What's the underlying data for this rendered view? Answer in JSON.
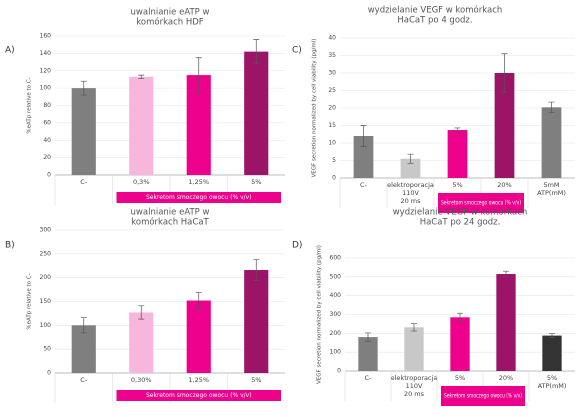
{
  "chart_data": [
    {
      "type": "bar",
      "panel": "A)",
      "title": [
        "uwalnianie eATP w",
        "komórkach HDF"
      ],
      "y_label": "%eATp relative to C-",
      "categories": [
        [
          "C-"
        ],
        [
          "0,3%"
        ],
        [
          "1,25%"
        ],
        [
          "5%"
        ]
      ],
      "values": [
        100,
        113,
        115,
        142
      ],
      "errors": [
        8,
        2,
        20,
        14
      ],
      "colors": [
        "#7f7f7f",
        "#f7b6dc",
        "#ec008c",
        "#9b1468"
      ],
      "group_label": "Sekretom smoczego owocu (% v/v)",
      "ylim": [
        0,
        160
      ],
      "yticks": [
        0,
        20,
        40,
        60,
        80,
        100,
        120,
        140,
        160
      ]
    },
    {
      "type": "bar",
      "panel": "C)",
      "title": [
        "wydzielanie VEGF w komórkach",
        "HaCaT po 4 godz."
      ],
      "y_label": "VEGF secretion normalized by cell viability (pg/ml)",
      "categories": [
        [
          "C-"
        ],
        [
          "elektroporacja",
          "110V",
          "20 ms"
        ],
        [
          "5%"
        ],
        [
          "20%"
        ],
        [
          "5mM",
          "ATP(mM)"
        ]
      ],
      "values": [
        12,
        5.5,
        13.7,
        30,
        20.2
      ],
      "errors": [
        3,
        1.3,
        0.6,
        5.5,
        1.5
      ],
      "colors": [
        "#7f7f7f",
        "#c8c8c8",
        "#ec008c",
        "#9b1468",
        "#7f7f7f"
      ],
      "group_label": "Sekretom smoczego owocu (% v/v)",
      "ylim": [
        0,
        40
      ],
      "yticks": [
        0,
        5,
        10,
        15,
        20,
        25,
        30,
        35,
        40
      ]
    },
    {
      "type": "bar",
      "panel": "B)",
      "title": [
        "uwalnianie eATP w",
        "komórkach HaCaT"
      ],
      "y_label": "%eATp relative to C-",
      "categories": [
        [
          "C-"
        ],
        [
          "0,30%"
        ],
        [
          "1,25%"
        ],
        [
          "5%"
        ]
      ],
      "values": [
        100,
        127,
        152,
        216
      ],
      "errors": [
        16,
        14,
        17,
        22
      ],
      "colors": [
        "#7f7f7f",
        "#f7b6dc",
        "#ec008c",
        "#9b1468"
      ],
      "group_label": "Sekretom smoczego owocu (% v/v)",
      "ylim": [
        0,
        300
      ],
      "yticks": [
        0,
        50,
        100,
        150,
        200,
        250,
        300
      ]
    },
    {
      "type": "bar",
      "panel": "D)",
      "title": [
        "wydzielanie VEGF w komórkach",
        "HaCaT po 24 godz."
      ],
      "y_label": "VEGF secretion normalized by cell viability (pg/ml)",
      "categories": [
        [
          "C-"
        ],
        [
          "elektroporacja",
          "110V",
          "20 ms"
        ],
        [
          "5%"
        ],
        [
          "20%"
        ],
        [
          "5%",
          "ATP(mM)"
        ]
      ],
      "values": [
        180,
        232,
        285,
        515,
        188
      ],
      "errors": [
        22,
        20,
        22,
        15,
        10
      ],
      "colors": [
        "#7f7f7f",
        "#c8c8c8",
        "#ec008c",
        "#9b1468",
        "#333333"
      ],
      "group_label": "Sekretom smoczego owocu (% v/v)",
      "ylim": [
        0,
        600
      ],
      "yticks": [
        0,
        100,
        200,
        300,
        400,
        500,
        600
      ]
    }
  ]
}
